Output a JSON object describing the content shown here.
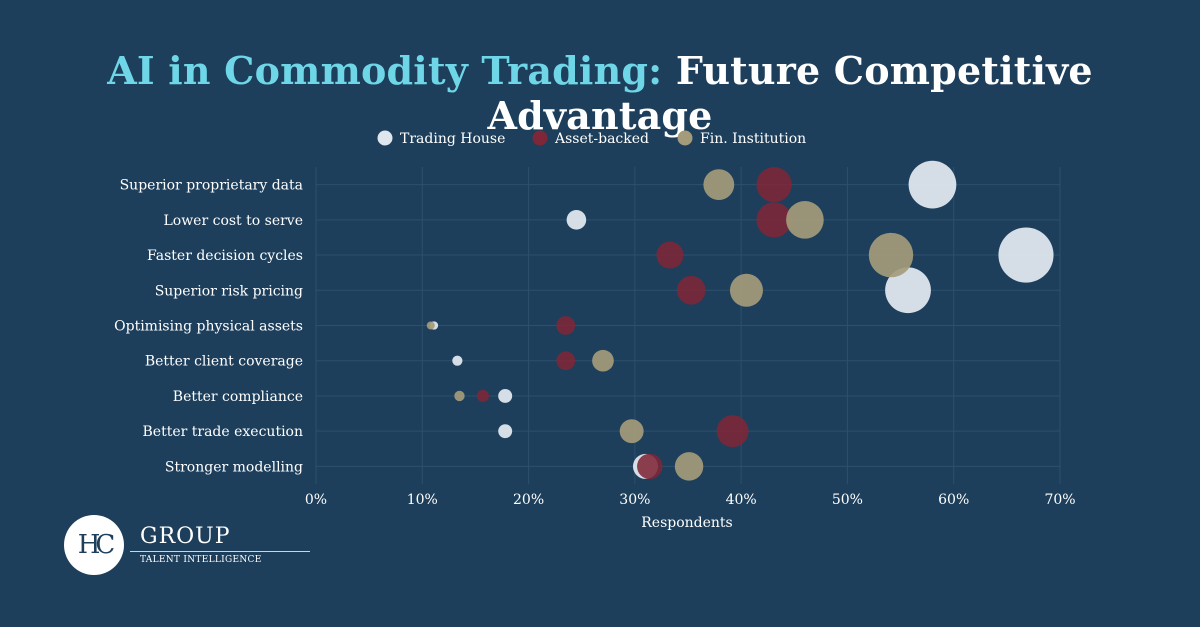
{
  "title": {
    "highlight": "AI in Commodity Trading:",
    "rest": "Future Competitive Advantage"
  },
  "colors": {
    "background": "#1d3f5b",
    "title_highlight": "#6ed6e6",
    "trading_house": "#dfe6ee",
    "asset_backed": "#7e2738",
    "fin_institution": "#a49b7b"
  },
  "chart_data": {
    "type": "scatter",
    "xlabel": "Respondents",
    "ylabel": "",
    "xlim": [
      0,
      70
    ],
    "xticks": [
      "0%",
      "10%",
      "20%",
      "30%",
      "40%",
      "50%",
      "60%",
      "70%"
    ],
    "legend_position": "top-center",
    "grid": true,
    "categories": [
      "Superior proprietary data",
      "Lower cost to serve",
      "Faster decision cycles",
      "Superior risk pricing",
      "Optimising physical assets",
      "Better client coverage",
      "Better compliance",
      "Better trade execution",
      "Stronger modelling"
    ],
    "series": [
      {
        "name": "Trading House",
        "color": "#dfe6ee",
        "values": [
          58,
          24.5,
          66.8,
          55.7,
          11.1,
          13.3,
          17.8,
          17.8,
          31
        ]
      },
      {
        "name": "Asset-backed",
        "color": "#7e2738",
        "values": [
          43.1,
          43.1,
          33.3,
          35.3,
          23.5,
          23.5,
          15.7,
          39.2,
          31.4
        ]
      },
      {
        "name": "Fin. Institution",
        "color": "#a49b7b",
        "values": [
          37.9,
          46,
          54.1,
          40.5,
          10.8,
          27,
          13.5,
          29.7,
          35.1
        ]
      }
    ]
  },
  "logo": {
    "monogram": "HC",
    "name": "GROUP",
    "tagline": "TALENT INTELLIGENCE"
  }
}
